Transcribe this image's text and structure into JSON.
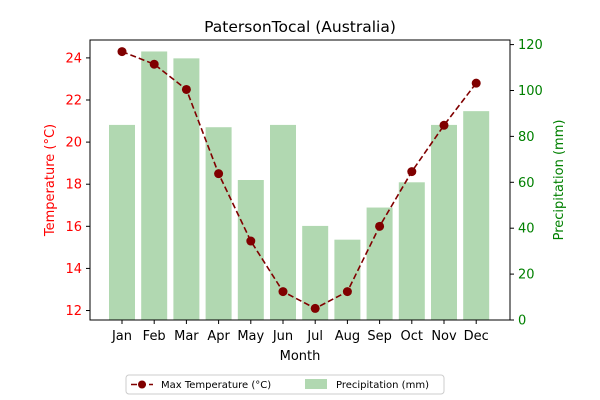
{
  "chart_data": {
    "type": "bar+line",
    "title": "PatersonTocal (Australia)",
    "xlabel": "Month",
    "categories": [
      "Jan",
      "Feb",
      "Mar",
      "Apr",
      "May",
      "Jun",
      "Jul",
      "Aug",
      "Sep",
      "Oct",
      "Nov",
      "Dec"
    ],
    "left_axis": {
      "label": "Temperature (°C)",
      "color": "#ff0000",
      "range": [
        11.55,
        24.85
      ],
      "ticks": [
        "12",
        "14",
        "16",
        "18",
        "20",
        "22",
        "24"
      ]
    },
    "right_axis": {
      "label": "Precipitation (mm)",
      "color": "#008000",
      "range": [
        0,
        122
      ],
      "ticks": [
        "0",
        "20",
        "40",
        "60",
        "80",
        "100",
        "120"
      ]
    },
    "series": [
      {
        "name": "Max Temperature (°C)",
        "type": "line",
        "axis": "left",
        "color": "#800000",
        "style": "dashed-with-circle-markers",
        "values": [
          24.3,
          23.7,
          22.5,
          18.5,
          15.3,
          12.9,
          12.1,
          12.9,
          16.0,
          18.6,
          20.8,
          22.8
        ]
      },
      {
        "name": "Precipitation (mm)",
        "type": "bar",
        "axis": "right",
        "color": "#b1d8b1",
        "values": [
          85,
          117,
          114,
          84,
          61,
          85,
          41,
          35,
          49,
          60,
          85,
          91
        ]
      }
    ],
    "legend_position": "bottom-center",
    "grid": false
  }
}
